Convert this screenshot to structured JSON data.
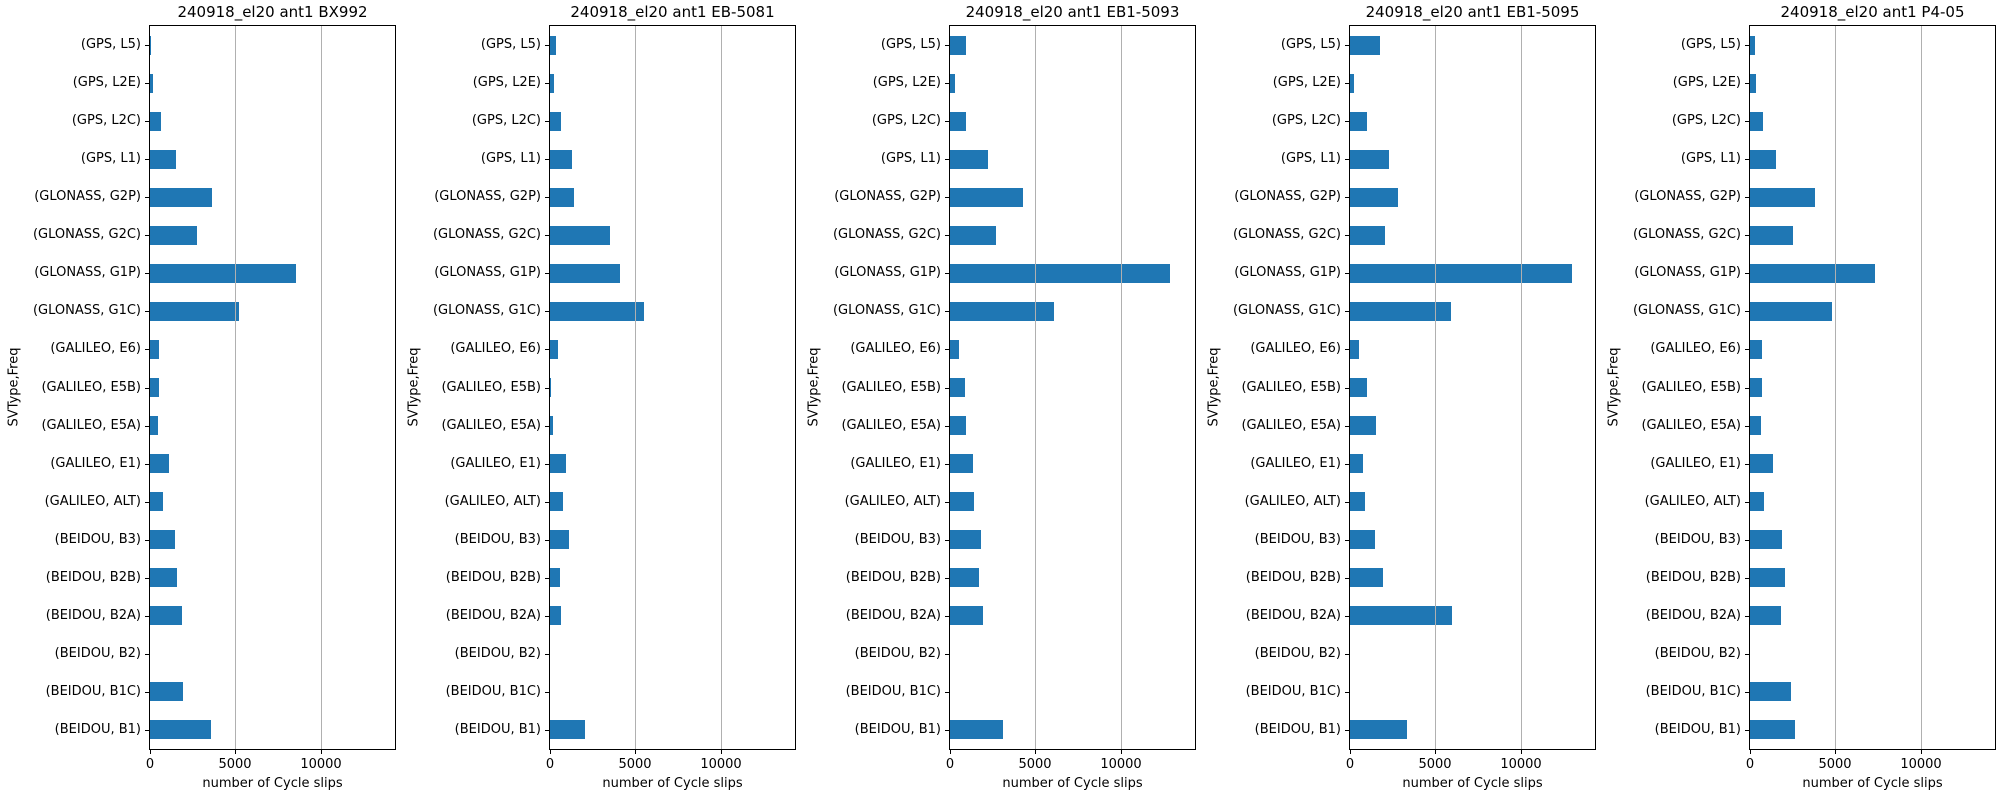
{
  "chart_data": {
    "type": "bar",
    "orientation": "horizontal",
    "layout": "5 side-by-side subplots, one per series, shared category axis",
    "categories": [
      "(GPS, L5)",
      "(GPS, L2E)",
      "(GPS, L2C)",
      "(GPS, L1)",
      "(GLONASS, G2P)",
      "(GLONASS, G2C)",
      "(GLONASS, G1P)",
      "(GLONASS, G1C)",
      "(GALILEO, E6)",
      "(GALILEO, E5B)",
      "(GALILEO, E5A)",
      "(GALILEO, E1)",
      "(GALILEO, ALT)",
      "(BEIDOU, B3)",
      "(BEIDOU, B2B)",
      "(BEIDOU, B2A)",
      "(BEIDOU, B2)",
      "(BEIDOU, B1C)",
      "(BEIDOU, B1)"
    ],
    "series": [
      {
        "name": "240918_el20 ant1 BX992",
        "values": [
          80,
          190,
          620,
          1500,
          3650,
          2760,
          8550,
          5200,
          550,
          550,
          470,
          1130,
          740,
          1460,
          1590,
          1900,
          0,
          1950,
          3580
        ]
      },
      {
        "name": "240918_el20 ant1 EB-5081",
        "values": [
          350,
          260,
          670,
          1310,
          1410,
          3490,
          4100,
          5510,
          490,
          80,
          160,
          920,
          750,
          1100,
          570,
          630,
          0,
          0,
          2040
        ]
      },
      {
        "name": "240918_el20 ant1 EB1-5093",
        "values": [
          920,
          280,
          920,
          2230,
          4300,
          2670,
          12890,
          6080,
          550,
          900,
          940,
          1330,
          1430,
          1840,
          1720,
          1960,
          0,
          0,
          3120
        ]
      },
      {
        "name": "240918_el20 ant1 EB1-5095",
        "values": [
          1730,
          230,
          990,
          2310,
          2830,
          2040,
          13040,
          5910,
          510,
          970,
          1550,
          780,
          890,
          1440,
          1960,
          5990,
          0,
          0,
          3340
        ]
      },
      {
        "name": "240918_el20 ant1 P4-05",
        "values": [
          270,
          330,
          740,
          1540,
          3810,
          2530,
          7330,
          4820,
          680,
          680,
          620,
          1320,
          800,
          1870,
          2080,
          1810,
          0,
          2430,
          2650
        ]
      }
    ],
    "xlabel": "number of Cycle slips",
    "ylabel": "SVType,Freq",
    "xlim": [
      0,
      14360
    ],
    "x_ticks": [
      0,
      5000,
      10000
    ],
    "grid": true,
    "legend": false,
    "colors": {
      "bar": "#1f77b4",
      "grid": "#b0b0b0",
      "spine": "#000000",
      "text": "#000000",
      "background": "#ffffff"
    }
  }
}
